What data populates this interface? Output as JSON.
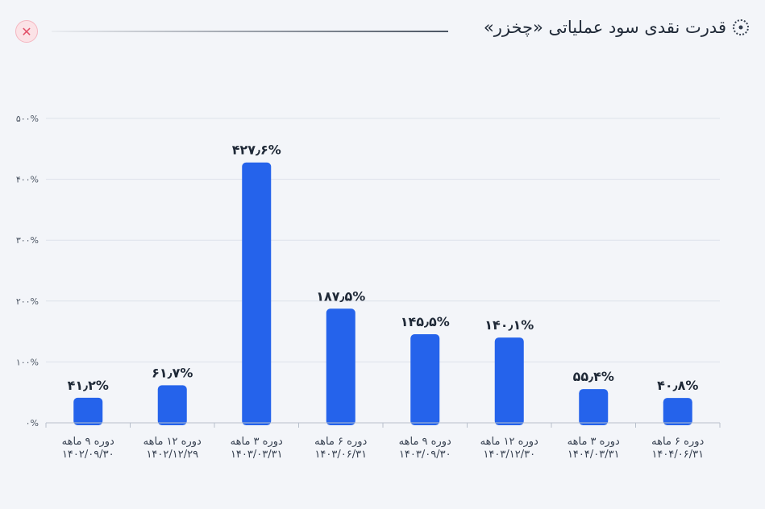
{
  "header": {
    "title": "قدرت نقدی سود عملیاتی «چخزر»",
    "title_icon": "dotted-circle-icon",
    "close_icon": "close-icon",
    "close_symbol": "✕"
  },
  "colors": {
    "bar": "#2563eb",
    "grid": "#dde2ea",
    "background": "#f3f5f9"
  },
  "chart_data": {
    "type": "bar",
    "title": "قدرت نقدی سود عملیاتی «چخزر»",
    "ylim": [
      0,
      500
    ],
    "yticks": [
      0,
      100,
      200,
      300,
      400,
      500
    ],
    "ytick_labels": [
      "۰%",
      "۱۰۰%",
      "۲۰۰%",
      "۳۰۰%",
      "۴۰۰%",
      "۵۰۰%"
    ],
    "grid": true,
    "categories": [
      {
        "period": "دوره ۹ ماهه",
        "date": "۱۴۰۲/۰۹/۳۰"
      },
      {
        "period": "دوره ۱۲ ماهه",
        "date": "۱۴۰۲/۱۲/۲۹"
      },
      {
        "period": "دوره ۳ ماهه",
        "date": "۱۴۰۳/۰۳/۳۱"
      },
      {
        "period": "دوره ۶ ماهه",
        "date": "۱۴۰۳/۰۶/۳۱"
      },
      {
        "period": "دوره ۹ ماهه",
        "date": "۱۴۰۳/۰۹/۳۰"
      },
      {
        "period": "دوره ۱۲ ماهه",
        "date": "۱۴۰۳/۱۲/۳۰"
      },
      {
        "period": "دوره ۳ ماهه",
        "date": "۱۴۰۴/۰۳/۳۱"
      },
      {
        "period": "دوره ۶ ماهه",
        "date": "۱۴۰۴/۰۶/۳۱"
      }
    ],
    "values": [
      41.2,
      61.7,
      427.6,
      187.5,
      145.5,
      140.1,
      55.4,
      40.8
    ],
    "value_labels": [
      "۴۱٫۲%",
      "۶۱٫۷%",
      "۴۲۷٫۶%",
      "۱۸۷٫۵%",
      "۱۴۵٫۵%",
      "۱۴۰٫۱%",
      "۵۵٫۴%",
      "۴۰٫۸%"
    ]
  }
}
